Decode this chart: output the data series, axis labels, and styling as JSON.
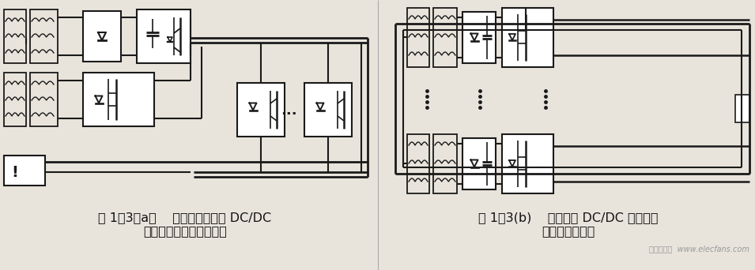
{
  "bg_color": "#e8e4dc",
  "line_color": "#1a1a1a",
  "caption_left_line1": "图 1－3（a）    基于直流母线的 DC/DC",
  "caption_left_line2": "电源并联的系统结构框图",
  "caption_right_line1": "图 1－3(b)    基于独立 DC/DC 电源并联",
  "caption_right_line2": "的系统结构框图",
  "watermark": "电子发烧友  www.elecfans.com",
  "font_size_caption": 11.5,
  "font_size_watermark": 7,
  "figsize": [
    9.55,
    3.42
  ],
  "dpi": 100
}
